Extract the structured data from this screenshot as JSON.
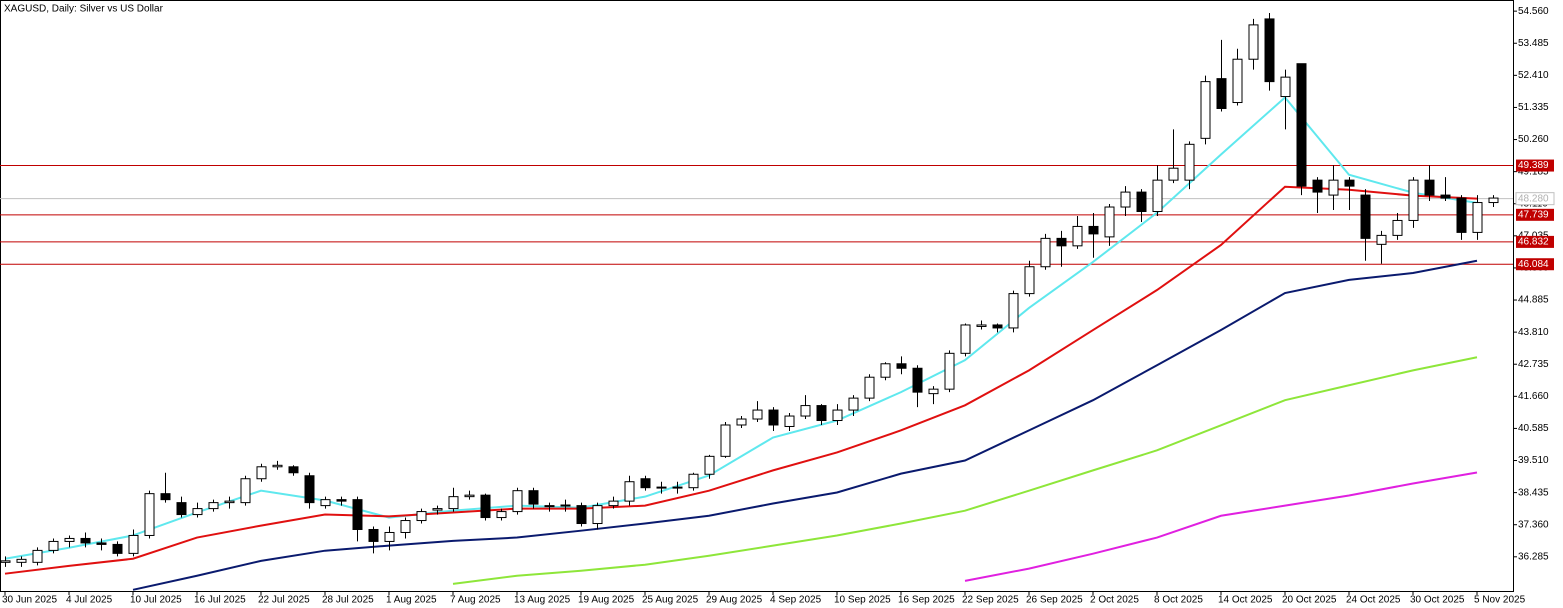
{
  "chart_data": {
    "type": "candlestick",
    "title": "XAGUSD, Daily:  Silver vs US Dollar",
    "categories": [
      "30 Jun 2025",
      null,
      null,
      null,
      "4 Jul 2025",
      null,
      null,
      null,
      "10 Jul 2025",
      null,
      null,
      null,
      "16 Jul 2025",
      null,
      null,
      null,
      "22 Jul 2025",
      null,
      null,
      null,
      "28 Jul 2025",
      null,
      null,
      null,
      "1 Aug 2025",
      null,
      null,
      null,
      "7 Aug 2025",
      null,
      null,
      null,
      "13 Aug 2025",
      null,
      null,
      null,
      "19 Aug 2025",
      null,
      null,
      null,
      "25 Aug 2025",
      null,
      null,
      null,
      "29 Aug 2025",
      null,
      null,
      null,
      "4 Sep 2025",
      null,
      null,
      null,
      "10 Sep 2025",
      null,
      null,
      null,
      "16 Sep 2025",
      null,
      null,
      null,
      "22 Sep 2025",
      null,
      null,
      null,
      "26 Sep 2025",
      null,
      null,
      null,
      "2 Oct 2025",
      null,
      null,
      null,
      "8 Oct 2025",
      null,
      null,
      null,
      "14 Oct 2025",
      null,
      null,
      null,
      "20 Oct 2025",
      null,
      null,
      null,
      "24 Oct 2025",
      null,
      null,
      null,
      "30 Oct 2025",
      null,
      null,
      null,
      "5 Nov 2025",
      null
    ],
    "open": [
      36.1,
      36.1,
      36.1,
      36.5,
      36.8,
      36.9,
      36.75,
      36.7,
      36.4,
      37.0,
      38.4,
      38.1,
      37.7,
      37.9,
      38.1,
      38.1,
      38.9,
      39.3,
      39.3,
      39.0,
      38.0,
      38.2,
      38.2,
      37.2,
      36.8,
      37.1,
      37.5,
      37.85,
      37.9,
      38.3,
      38.35,
      37.6,
      37.8,
      38.5,
      38.0,
      38.0,
      38.0,
      37.4,
      38.0,
      38.15,
      38.9,
      38.6,
      38.62,
      38.6,
      39.05,
      39.65,
      40.7,
      40.9,
      41.2,
      40.65,
      41.0,
      41.35,
      40.85,
      41.2,
      41.6,
      42.3,
      42.75,
      42.6,
      41.75,
      41.9,
      43.1,
      44.0,
      44.05,
      43.95,
      45.1,
      46.0,
      46.95,
      46.7,
      47.35,
      47.0,
      48.0,
      48.5,
      47.85,
      48.9,
      48.9,
      50.3,
      52.3,
      51.5,
      52.95,
      54.3,
      51.7,
      52.8,
      48.9,
      48.4,
      48.9,
      48.4,
      46.75,
      47.05,
      47.55,
      48.9,
      48.4,
      48.3,
      47.15,
      48.15
    ],
    "high": [
      36.3,
      36.3,
      36.6,
      36.9,
      37.0,
      37.1,
      36.9,
      36.8,
      37.2,
      38.5,
      39.1,
      38.3,
      38.1,
      38.2,
      38.3,
      39.0,
      39.4,
      39.5,
      39.35,
      39.1,
      38.3,
      38.3,
      38.3,
      37.3,
      37.3,
      37.6,
      37.9,
      38.0,
      38.6,
      38.5,
      38.4,
      37.9,
      38.6,
      38.6,
      38.1,
      38.2,
      38.1,
      38.1,
      38.3,
      39.0,
      39.0,
      38.8,
      38.8,
      39.1,
      39.7,
      40.8,
      41.0,
      41.5,
      41.3,
      41.1,
      41.7,
      41.4,
      41.4,
      41.7,
      42.4,
      42.8,
      43.0,
      42.7,
      42.0,
      43.2,
      44.1,
      44.2,
      44.1,
      45.2,
      46.2,
      47.1,
      47.2,
      47.7,
      47.8,
      48.1,
      48.7,
      48.6,
      49.4,
      50.6,
      50.2,
      52.4,
      53.6,
      53.3,
      54.3,
      54.5,
      52.6,
      52.8,
      49.0,
      49.4,
      49.0,
      48.6,
      47.2,
      47.8,
      49.0,
      49.4,
      49.0,
      48.4,
      48.4,
      48.4
    ],
    "low": [
      35.95,
      35.95,
      36.0,
      36.4,
      36.6,
      36.6,
      36.5,
      36.3,
      36.3,
      36.9,
      38.1,
      37.6,
      37.6,
      37.8,
      37.9,
      38.0,
      38.8,
      39.2,
      39.0,
      37.9,
      37.9,
      38.0,
      36.8,
      36.4,
      36.5,
      36.9,
      37.4,
      37.7,
      37.8,
      38.2,
      37.5,
      37.5,
      37.7,
      37.9,
      37.8,
      37.8,
      37.3,
      37.2,
      37.9,
      38.0,
      38.5,
      38.4,
      38.4,
      38.5,
      38.9,
      39.6,
      40.6,
      40.8,
      40.5,
      40.5,
      40.9,
      40.7,
      40.7,
      41.0,
      41.5,
      42.2,
      42.4,
      41.3,
      41.4,
      41.8,
      43.0,
      43.9,
      43.8,
      43.8,
      45.0,
      45.9,
      46.0,
      46.6,
      46.3,
      46.7,
      47.7,
      47.5,
      47.7,
      48.8,
      48.6,
      50.1,
      51.2,
      51.4,
      52.6,
      51.9,
      50.6,
      48.4,
      47.8,
      47.9,
      47.9,
      46.2,
      46.1,
      46.9,
      47.3,
      48.2,
      48.2,
      46.9,
      46.9,
      48.0
    ],
    "close": [
      36.15,
      36.2,
      36.5,
      36.8,
      36.9,
      36.75,
      36.7,
      36.4,
      37.0,
      38.4,
      38.2,
      37.7,
      37.9,
      38.1,
      38.15,
      38.9,
      39.3,
      39.35,
      39.1,
      38.1,
      38.2,
      38.15,
      37.2,
      36.8,
      37.1,
      37.5,
      37.8,
      37.9,
      38.3,
      38.35,
      37.6,
      37.8,
      38.5,
      38.05,
      37.98,
      38.02,
      37.4,
      38.0,
      38.15,
      38.8,
      38.6,
      38.62,
      38.6,
      39.05,
      39.65,
      40.7,
      40.9,
      41.2,
      40.7,
      41.0,
      41.35,
      40.85,
      41.2,
      41.6,
      42.3,
      42.75,
      42.6,
      41.8,
      41.9,
      43.1,
      44.05,
      44.05,
      43.95,
      45.1,
      46.0,
      46.95,
      46.7,
      47.35,
      47.1,
      48.0,
      48.5,
      47.85,
      48.9,
      49.3,
      50.1,
      52.2,
      51.3,
      52.95,
      54.1,
      52.2,
      52.35,
      48.7,
      48.5,
      48.9,
      48.7,
      46.95,
      47.05,
      47.55,
      48.9,
      48.4,
      48.3,
      47.15,
      48.15,
      48.3
    ],
    "bull_color": "#ffffff",
    "bear_color": "#000000",
    "series": [
      {
        "color": "#5fe8ee",
        "x": [
          "30 Jun 2025",
          "4 Jul 2025",
          "10 Jul 2025",
          "16 Jul 2025",
          "22 Jul 2025",
          "28 Jul 2025",
          "1 Aug 2025",
          "7 Aug 2025",
          "13 Aug 2025",
          "19 Aug 2025",
          "25 Aug 2025",
          "29 Aug 2025",
          "4 Sep 2025",
          "10 Sep 2025",
          "16 Sep 2025",
          "22 Sep 2025",
          "26 Sep 2025",
          "2 Oct 2025",
          "8 Oct 2025",
          "14 Oct 2025",
          "20 Oct 2025",
          "24 Oct 2025",
          "30 Oct 2025",
          "5 Nov 2025"
        ],
        "values": [
          36.22,
          36.59,
          37.0,
          37.77,
          38.5,
          38.17,
          37.6,
          37.83,
          38.0,
          37.93,
          38.3,
          39.01,
          40.28,
          40.85,
          41.8,
          42.87,
          44.62,
          46.16,
          47.81,
          49.76,
          51.67,
          49.08,
          48.48,
          48.14
        ]
      },
      {
        "color": "#e01010",
        "x": [
          "30 Jun 2025",
          "4 Jul 2025",
          "10 Jul 2025",
          "16 Jul 2025",
          "22 Jul 2025",
          "28 Jul 2025",
          "1 Aug 2025",
          "7 Aug 2025",
          "13 Aug 2025",
          "19 Aug 2025",
          "25 Aug 2025",
          "29 Aug 2025",
          "4 Sep 2025",
          "10 Sep 2025",
          "16 Sep 2025",
          "22 Sep 2025",
          "26 Sep 2025",
          "2 Oct 2025",
          "8 Oct 2025",
          "14 Oct 2025",
          "20 Oct 2025",
          "24 Oct 2025",
          "30 Oct 2025",
          "5 Nov 2025"
        ],
        "values": [
          35.72,
          35.98,
          36.22,
          36.93,
          37.33,
          37.7,
          37.64,
          37.77,
          37.9,
          37.9,
          38.0,
          38.5,
          39.18,
          39.78,
          40.52,
          41.36,
          42.53,
          43.88,
          45.22,
          46.73,
          48.68,
          48.58,
          48.38,
          48.28
        ]
      },
      {
        "color": "#0a1a6e",
        "x": [
          "10 Jul 2025",
          "16 Jul 2025",
          "22 Jul 2025",
          "28 Jul 2025",
          "1 Aug 2025",
          "7 Aug 2025",
          "13 Aug 2025",
          "19 Aug 2025",
          "25 Aug 2025",
          "29 Aug 2025",
          "4 Sep 2025",
          "10 Sep 2025",
          "16 Sep 2025",
          "22 Sep 2025",
          "26 Sep 2025",
          "2 Oct 2025",
          "8 Oct 2025",
          "14 Oct 2025",
          "20 Oct 2025",
          "24 Oct 2025",
          "30 Oct 2025",
          "5 Nov 2025"
        ],
        "values": [
          35.18,
          35.65,
          36.15,
          36.49,
          36.66,
          36.82,
          36.93,
          37.16,
          37.4,
          37.66,
          38.07,
          38.44,
          39.07,
          39.51,
          40.52,
          41.53,
          42.7,
          43.88,
          45.12,
          45.56,
          45.79,
          46.2
        ]
      },
      {
        "color": "#8ee63a",
        "x": [
          "7 Aug 2025",
          "13 Aug 2025",
          "19 Aug 2025",
          "25 Aug 2025",
          "29 Aug 2025",
          "4 Sep 2025",
          "10 Sep 2025",
          "16 Sep 2025",
          "22 Sep 2025",
          "26 Sep 2025",
          "2 Oct 2025",
          "8 Oct 2025",
          "14 Oct 2025",
          "20 Oct 2025",
          "24 Oct 2025",
          "30 Oct 2025",
          "5 Nov 2025"
        ],
        "values": [
          35.38,
          35.65,
          35.82,
          36.02,
          36.32,
          36.66,
          37.0,
          37.4,
          37.83,
          38.5,
          39.18,
          39.85,
          40.69,
          41.53,
          42.03,
          42.53,
          42.97
        ]
      },
      {
        "color": "#e020e0",
        "x": [
          "22 Sep 2025",
          "26 Sep 2025",
          "2 Oct 2025",
          "8 Oct 2025",
          "14 Oct 2025",
          "20 Oct 2025",
          "24 Oct 2025",
          "30 Oct 2025",
          "5 Nov 2025"
        ],
        "values": [
          35.48,
          35.89,
          36.39,
          36.93,
          37.66,
          38.0,
          38.34,
          38.74,
          39.11
        ]
      }
    ],
    "levels": [
      {
        "value": 49.389,
        "label": "49.389"
      },
      {
        "value": 47.739,
        "label": "47.739"
      },
      {
        "value": 46.832,
        "label": "46.832"
      },
      {
        "value": 46.084,
        "label": "46.084"
      }
    ],
    "level_color": "#c00000",
    "current_price": {
      "value": 48.28,
      "label": "48.280"
    },
    "current_color": "#c0c0c0",
    "ylim": [
      35.14,
      54.9
    ],
    "yticks": [
      {
        "value": 54.56,
        "label": "54.560"
      },
      {
        "value": 53.485,
        "label": "53.485"
      },
      {
        "value": 52.41,
        "label": "52.410"
      },
      {
        "value": 51.335,
        "label": "51.335"
      },
      {
        "value": 50.26,
        "label": "50.260"
      },
      {
        "value": 49.185,
        "label": "49.185"
      },
      {
        "value": 48.11,
        "label": "48.110"
      },
      {
        "value": 47.035,
        "label": "47.035"
      },
      {
        "value": 45.96,
        "label": "45.960"
      },
      {
        "value": 44.885,
        "label": "44.885"
      },
      {
        "value": 43.81,
        "label": "43.810"
      },
      {
        "value": 42.735,
        "label": "42.735"
      },
      {
        "value": 41.66,
        "label": "41.660"
      },
      {
        "value": 40.585,
        "label": "40.585"
      },
      {
        "value": 39.51,
        "label": "39.510"
      },
      {
        "value": 38.435,
        "label": "38.435"
      },
      {
        "value": 37.36,
        "label": "37.360"
      },
      {
        "value": 36.285,
        "label": "36.285"
      }
    ]
  }
}
